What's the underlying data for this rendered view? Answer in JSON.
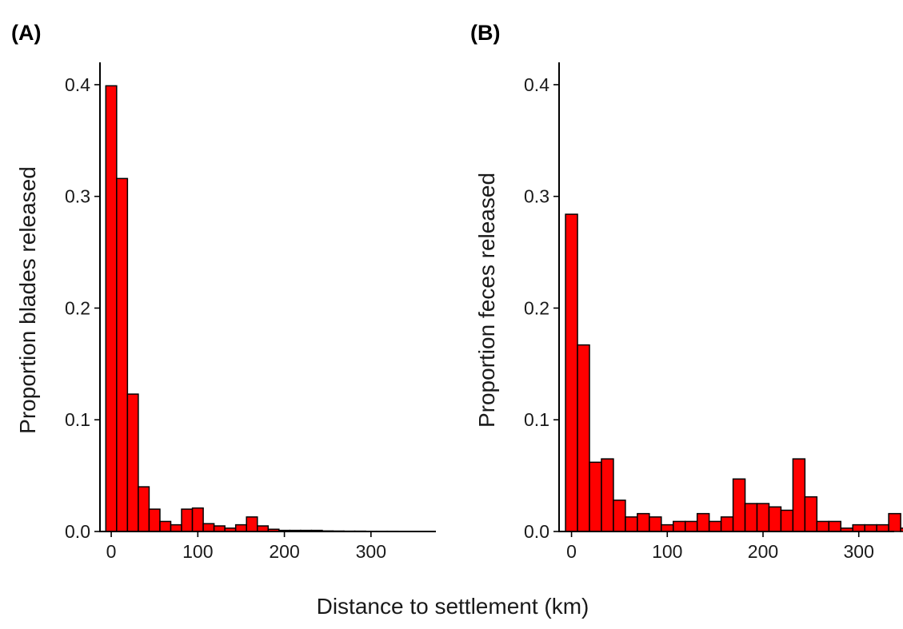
{
  "figure": {
    "shared_xlabel": "Distance to settlement (km)"
  },
  "colors": {
    "bar_fill": "#ff0000",
    "bar_outline": "#000000",
    "axis": "#000000"
  },
  "chart_data": [
    {
      "type": "bar",
      "panel_label": "(A)",
      "title": "",
      "xlabel": "Distance to settlement (km)",
      "ylabel": "Proportion blades released",
      "xlim": [
        -13,
        375
      ],
      "ylim": [
        0,
        0.42
      ],
      "bin_width": 12.5,
      "x_ticks": [
        0,
        100,
        200,
        300
      ],
      "y_ticks": [
        0.0,
        0.1,
        0.2,
        0.3,
        0.4
      ],
      "y_tick_labels": [
        "0.0",
        "0.1",
        "0.2",
        "0.3",
        "0.4"
      ],
      "grid": false,
      "bins": [
        {
          "x": 0,
          "y": 0.399
        },
        {
          "x": 12.5,
          "y": 0.316
        },
        {
          "x": 25,
          "y": 0.123
        },
        {
          "x": 37.5,
          "y": 0.04
        },
        {
          "x": 50,
          "y": 0.02
        },
        {
          "x": 62.5,
          "y": 0.009
        },
        {
          "x": 75,
          "y": 0.006
        },
        {
          "x": 87.5,
          "y": 0.02
        },
        {
          "x": 100,
          "y": 0.021
        },
        {
          "x": 112.5,
          "y": 0.007
        },
        {
          "x": 125,
          "y": 0.005
        },
        {
          "x": 137.5,
          "y": 0.003
        },
        {
          "x": 150,
          "y": 0.006
        },
        {
          "x": 162.5,
          "y": 0.013
        },
        {
          "x": 175,
          "y": 0.005
        },
        {
          "x": 187.5,
          "y": 0.002
        },
        {
          "x": 200,
          "y": 0.001
        },
        {
          "x": 212.5,
          "y": 0.001
        },
        {
          "x": 225,
          "y": 0.001
        },
        {
          "x": 237.5,
          "y": 0.001
        },
        {
          "x": 250,
          "y": 0.0005
        },
        {
          "x": 262.5,
          "y": 0.0004
        },
        {
          "x": 275,
          "y": 0.0003
        },
        {
          "x": 287.5,
          "y": 0.0003
        },
        {
          "x": 300,
          "y": 0.0002
        },
        {
          "x": 312.5,
          "y": 0.0002
        },
        {
          "x": 325,
          "y": 0.0002
        },
        {
          "x": 337.5,
          "y": 0.0001
        },
        {
          "x": 350,
          "y": 0.0001
        },
        {
          "x": 362.5,
          "y": 0.0001
        }
      ]
    },
    {
      "type": "bar",
      "panel_label": "(B)",
      "title": "",
      "xlabel": "Distance to settlement (km)",
      "ylabel": "Proportion feces released",
      "xlim": [
        -13,
        337
      ],
      "ylim": [
        0,
        0.42
      ],
      "bin_width": 12.5,
      "x_ticks": [
        0,
        100,
        200,
        300
      ],
      "y_ticks": [
        0.0,
        0.1,
        0.2,
        0.3,
        0.4
      ],
      "y_tick_labels": [
        "0.0",
        "0.1",
        "0.2",
        "0.3",
        "0.4"
      ],
      "grid": false,
      "bins": [
        {
          "x": 0,
          "y": 0.284
        },
        {
          "x": 12.5,
          "y": 0.167
        },
        {
          "x": 25,
          "y": 0.062
        },
        {
          "x": 37.5,
          "y": 0.065
        },
        {
          "x": 50,
          "y": 0.028
        },
        {
          "x": 62.5,
          "y": 0.013
        },
        {
          "x": 75,
          "y": 0.016
        },
        {
          "x": 87.5,
          "y": 0.013
        },
        {
          "x": 100,
          "y": 0.006
        },
        {
          "x": 112.5,
          "y": 0.009
        },
        {
          "x": 125,
          "y": 0.009
        },
        {
          "x": 137.5,
          "y": 0.016
        },
        {
          "x": 150,
          "y": 0.009
        },
        {
          "x": 162.5,
          "y": 0.013
        },
        {
          "x": 175,
          "y": 0.047
        },
        {
          "x": 187.5,
          "y": 0.025
        },
        {
          "x": 200,
          "y": 0.025
        },
        {
          "x": 212.5,
          "y": 0.022
        },
        {
          "x": 225,
          "y": 0.019
        },
        {
          "x": 237.5,
          "y": 0.065
        },
        {
          "x": 250,
          "y": 0.031
        },
        {
          "x": 262.5,
          "y": 0.009
        },
        {
          "x": 275,
          "y": 0.009
        },
        {
          "x": 287.5,
          "y": 0.003
        },
        {
          "x": 300,
          "y": 0.006
        },
        {
          "x": 312.5,
          "y": 0.006
        },
        {
          "x": 325,
          "y": 0.006
        },
        {
          "x": 337.5,
          "y": 0.016
        },
        {
          "x": 350,
          "y": 0.003
        },
        {
          "x": 362.5,
          "y": 0.003
        }
      ]
    }
  ]
}
